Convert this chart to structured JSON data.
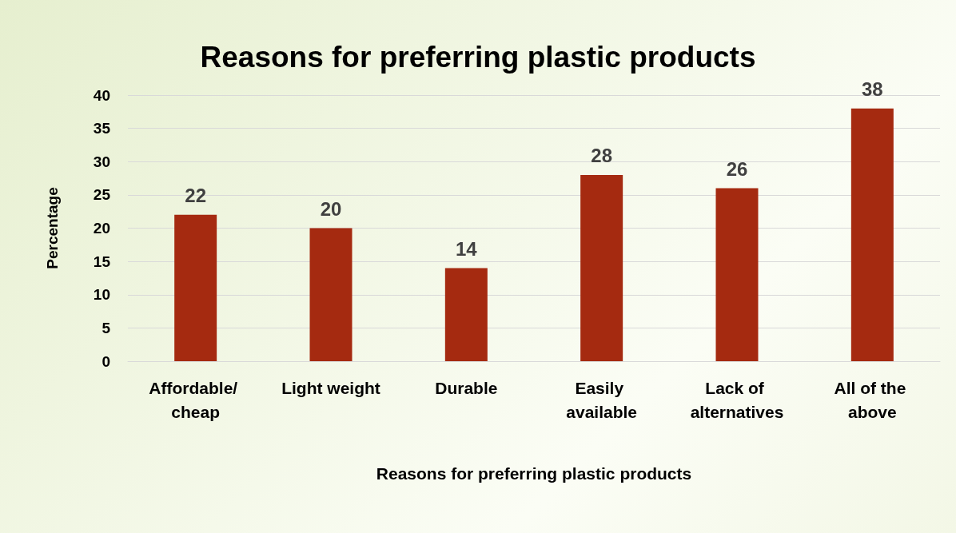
{
  "chart_data": {
    "type": "bar",
    "title": "Reasons for preferring plastic products",
    "xlabel": "Reasons for preferring plastic products",
    "ylabel": "Percentage",
    "categories": [
      "Affordable/ cheap",
      "Light weight",
      "Durable",
      "Easily available",
      "Lack of alternatives",
      "All of the above"
    ],
    "values": [
      22,
      20,
      14,
      28,
      26,
      38
    ],
    "color": "#a52a10",
    "ylim": [
      0,
      40
    ],
    "yticks": [
      0,
      5,
      10,
      15,
      20,
      25,
      30,
      35,
      40
    ],
    "grid": "y",
    "data_labels": true
  }
}
